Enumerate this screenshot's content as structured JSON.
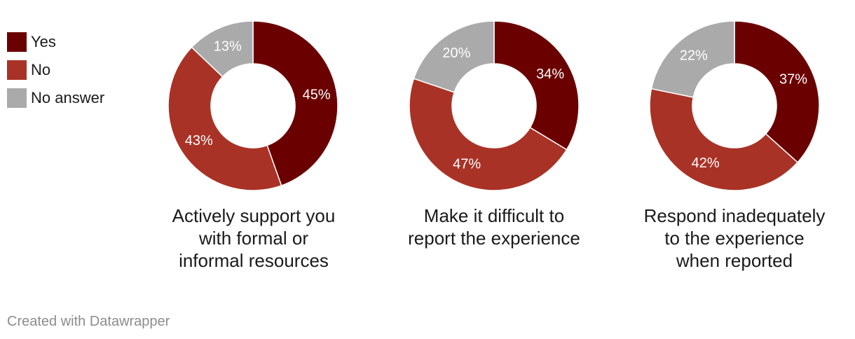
{
  "chart_data": {
    "type": "pie",
    "legend": [
      {
        "label": "Yes",
        "color": "#6b0000"
      },
      {
        "label": "No",
        "color": "#a93226"
      },
      {
        "label": "No answer",
        "color": "#aaaaaa"
      }
    ],
    "legend_position": "top-left",
    "charts": [
      {
        "title": "Actively support you with formal or informal resources",
        "title_lines": [
          "Actively support you",
          "with formal or",
          "informal resources"
        ],
        "values": [
          45,
          43,
          13
        ],
        "labels": [
          "45%",
          "43%",
          "13%"
        ]
      },
      {
        "title": "Make it difficult to report the experience",
        "title_lines": [
          "Make it difficult to",
          "report the experience"
        ],
        "values": [
          34,
          47,
          20
        ],
        "labels": [
          "34%",
          "47%",
          "20%"
        ]
      },
      {
        "title": "Respond inadequately to the experience when reported",
        "title_lines": [
          "Respond inadequately",
          "to the experience",
          "when reported"
        ],
        "values": [
          37,
          42,
          22
        ],
        "labels": [
          "37%",
          "42%",
          "22%"
        ]
      }
    ]
  },
  "credit": "Created with Datawrapper"
}
